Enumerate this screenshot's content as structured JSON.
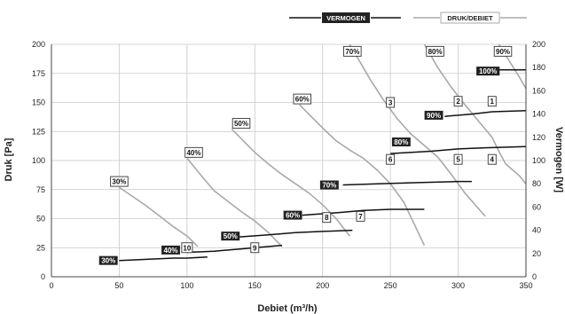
{
  "chart_data": {
    "type": "line",
    "xlabel": "Debiet (m³/h)",
    "ylabel_left": "Druk [Pa]",
    "ylabel_right": "Vermogen [W]",
    "xlim": [
      0,
      350
    ],
    "ylim_left": [
      0,
      200
    ],
    "ylim_right": [
      0,
      200
    ],
    "xticks": [
      0,
      50,
      100,
      150,
      200,
      250,
      300,
      350
    ],
    "yticks_left": [
      0,
      25,
      50,
      75,
      100,
      125,
      150,
      175,
      200
    ],
    "yticks_right": [
      0,
      20,
      40,
      60,
      80,
      100,
      120,
      140,
      160,
      180,
      200
    ],
    "grid": true,
    "legend": [
      {
        "name": "VERMOGEN",
        "color": "#111111"
      },
      {
        "name": "DRUK/DEBIET",
        "color": "#a9a9a9"
      }
    ],
    "druk_debiet_series": [
      {
        "label": "30%",
        "points": [
          [
            50,
            77
          ],
          [
            70,
            61
          ],
          [
            80,
            52
          ],
          [
            90,
            43
          ],
          [
            100,
            35
          ],
          [
            108,
            26
          ]
        ]
      },
      {
        "label": "40%",
        "points": [
          [
            100,
            102
          ],
          [
            112,
            85
          ],
          [
            120,
            74
          ],
          [
            130,
            65
          ],
          [
            140,
            56
          ],
          [
            150,
            48
          ],
          [
            160,
            38
          ],
          [
            170,
            26
          ]
        ]
      },
      {
        "label": "50%",
        "points": [
          [
            133,
            127
          ],
          [
            150,
            107
          ],
          [
            160,
            97
          ],
          [
            170,
            88
          ],
          [
            180,
            80
          ],
          [
            190,
            72
          ],
          [
            200,
            62
          ],
          [
            210,
            50
          ],
          [
            220,
            35
          ]
        ]
      },
      {
        "label": "60%",
        "points": [
          [
            183,
            148
          ],
          [
            200,
            128
          ],
          [
            210,
            117
          ],
          [
            220,
            109
          ],
          [
            230,
            102
          ],
          [
            240,
            92
          ],
          [
            250,
            80
          ],
          [
            260,
            64
          ],
          [
            275,
            27
          ]
        ]
      },
      {
        "label": "70%",
        "points": [
          [
            220,
            200
          ],
          [
            235,
            170
          ],
          [
            245,
            152
          ],
          [
            255,
            136
          ],
          [
            265,
            123
          ],
          [
            275,
            113
          ],
          [
            285,
            103
          ],
          [
            295,
            88
          ],
          [
            305,
            72
          ],
          [
            320,
            52
          ]
        ]
      },
      {
        "label": "80%",
        "points": [
          [
            275,
            200
          ],
          [
            285,
            180
          ],
          [
            295,
            163
          ],
          [
            305,
            148
          ],
          [
            315,
            134
          ],
          [
            325,
            120
          ],
          [
            330,
            108
          ],
          [
            335,
            97
          ],
          [
            345,
            87
          ],
          [
            350,
            80
          ]
        ]
      },
      {
        "label": "90%",
        "points": [
          [
            330,
            200
          ],
          [
            338,
            185
          ],
          [
            345,
            172
          ],
          [
            350,
            162
          ]
        ]
      }
    ],
    "vermogen_series": [
      {
        "label": "30%",
        "points": [
          [
            50,
            14
          ],
          [
            70,
            15
          ],
          [
            90,
            16
          ],
          [
            100,
            16
          ],
          [
            115,
            17
          ]
        ]
      },
      {
        "label": "40%",
        "points": [
          [
            100,
            21
          ],
          [
            120,
            22
          ],
          [
            140,
            24
          ],
          [
            150,
            25
          ],
          [
            170,
            27
          ]
        ]
      },
      {
        "label": "50%",
        "points": [
          [
            135,
            34
          ],
          [
            160,
            36
          ],
          [
            180,
            38
          ],
          [
            200,
            39
          ],
          [
            222,
            40
          ]
        ]
      },
      {
        "label": "60%",
        "points": [
          [
            185,
            53
          ],
          [
            210,
            55
          ],
          [
            230,
            57
          ],
          [
            250,
            58
          ],
          [
            275,
            58
          ]
        ]
      },
      {
        "label": "70%",
        "points": [
          [
            215,
            79
          ],
          [
            240,
            80
          ],
          [
            270,
            81
          ],
          [
            300,
            82
          ],
          [
            310,
            82
          ]
        ]
      },
      {
        "label": "80%",
        "points": [
          [
            250,
            106
          ],
          [
            280,
            108
          ],
          [
            300,
            110
          ],
          [
            320,
            111
          ],
          [
            350,
            112
          ]
        ]
      },
      {
        "label": "90%",
        "points": [
          [
            290,
            138
          ],
          [
            310,
            140
          ],
          [
            325,
            142
          ],
          [
            350,
            143
          ]
        ]
      },
      {
        "label": "100%",
        "points": [
          [
            330,
            178
          ],
          [
            350,
            178
          ]
        ]
      }
    ],
    "druk_labels": [
      {
        "text": "30%",
        "x": 50,
        "y": 82
      },
      {
        "text": "40%",
        "x": 105,
        "y": 107
      },
      {
        "text": "50%",
        "x": 140,
        "y": 132
      },
      {
        "text": "60%",
        "x": 185,
        "y": 153
      },
      {
        "text": "70%",
        "x": 222,
        "y": 194
      },
      {
        "text": "80%",
        "x": 283,
        "y": 194
      },
      {
        "text": "90%",
        "x": 333,
        "y": 194
      }
    ],
    "vermogen_labels": [
      {
        "text": "30%",
        "x": 42,
        "y": 14
      },
      {
        "text": "40%",
        "x": 88,
        "y": 23
      },
      {
        "text": "50%",
        "x": 132,
        "y": 35
      },
      {
        "text": "60%",
        "x": 178,
        "y": 53
      },
      {
        "text": "70%",
        "x": 205,
        "y": 79
      },
      {
        "text": "80%",
        "x": 258,
        "y": 116
      },
      {
        "text": "90%",
        "x": 282,
        "y": 139
      },
      {
        "text": "100%",
        "x": 322,
        "y": 177
      }
    ],
    "point_markers": [
      {
        "text": "1",
        "x": 325,
        "y": 151
      },
      {
        "text": "2",
        "x": 300,
        "y": 151
      },
      {
        "text": "3",
        "x": 250,
        "y": 150
      },
      {
        "text": "4",
        "x": 325,
        "y": 101
      },
      {
        "text": "5",
        "x": 300,
        "y": 101
      },
      {
        "text": "6",
        "x": 250,
        "y": 101
      },
      {
        "text": "7",
        "x": 228,
        "y": 52
      },
      {
        "text": "8",
        "x": 203,
        "y": 51
      },
      {
        "text": "9",
        "x": 150,
        "y": 25
      },
      {
        "text": "10",
        "x": 100,
        "y": 25
      }
    ]
  }
}
